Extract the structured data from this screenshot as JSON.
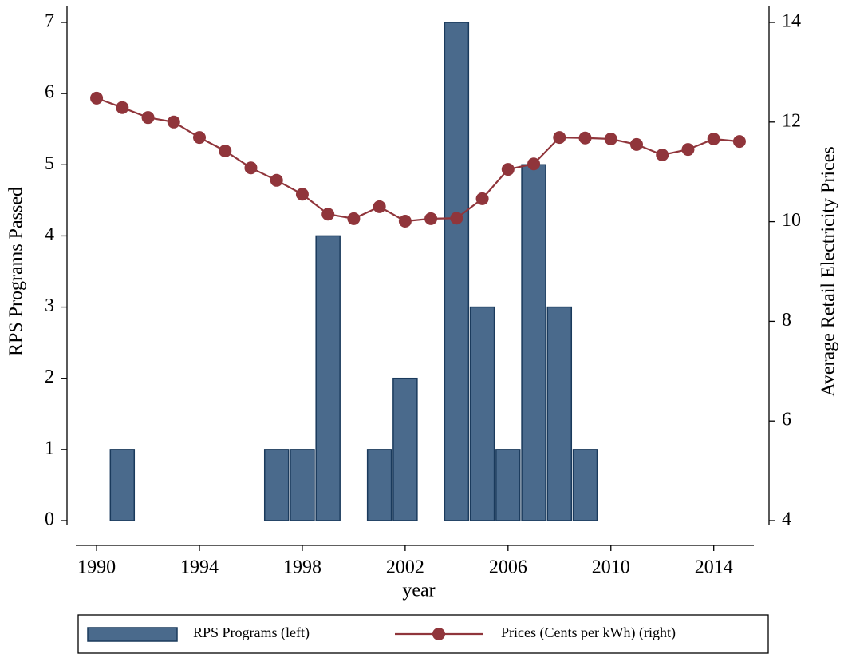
{
  "chart_data": {
    "type": "bar",
    "x_label": "year",
    "y_label": "RPS Programs Passed",
    "y2_label": "Average Retail Electricity Prices",
    "x": [
      1990,
      1991,
      1992,
      1993,
      1994,
      1995,
      1996,
      1997,
      1998,
      1999,
      2000,
      2001,
      2002,
      2003,
      2004,
      2005,
      2006,
      2007,
      2008,
      2009,
      2010,
      2011,
      2012,
      2013,
      2014,
      2015
    ],
    "series": [
      {
        "name": "RPS Programs (left)",
        "type": "bar",
        "color": "#4a6a8c",
        "edge": "#1a3a5c",
        "values": [
          null,
          1,
          null,
          null,
          null,
          null,
          null,
          1,
          1,
          4,
          null,
          1,
          2,
          null,
          7,
          3,
          1,
          5,
          3,
          1,
          null,
          null,
          null,
          null,
          null,
          null
        ]
      },
      {
        "name": "Prices (Cents per kWh) (right)",
        "type": "line",
        "axis": "y2",
        "color": "#90353b",
        "values": [
          12.48,
          12.29,
          12.09,
          12.0,
          11.69,
          11.42,
          11.08,
          10.83,
          10.55,
          10.15,
          10.06,
          10.3,
          10.01,
          10.06,
          10.07,
          10.46,
          11.05,
          11.16,
          11.69,
          11.68,
          11.66,
          11.55,
          11.34,
          11.45,
          11.66,
          11.61
        ]
      }
    ],
    "xlim": [
      1988.85,
      2016.15
    ],
    "xticks": [
      1990,
      1994,
      1998,
      2002,
      2006,
      2010,
      2014
    ],
    "ylim": [
      0,
      7
    ],
    "yticks": [
      0,
      1,
      2,
      3,
      4,
      5,
      6,
      7
    ],
    "y2lim": [
      4,
      14
    ],
    "y2ticks": [
      4,
      6,
      8,
      10,
      12,
      14
    ],
    "legend": "bottom"
  }
}
